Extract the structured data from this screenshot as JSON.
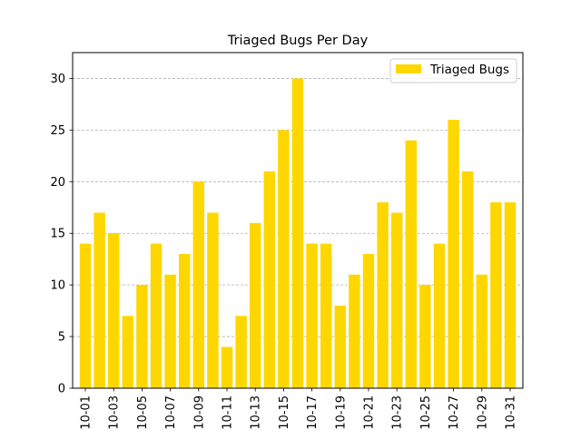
{
  "chart_data": {
    "type": "bar",
    "title": "Triaged Bugs Per Day",
    "xlabel": "",
    "ylabel": "",
    "categories": [
      "10-01",
      "10-02",
      "10-03",
      "10-04",
      "10-05",
      "10-06",
      "10-07",
      "10-08",
      "10-09",
      "10-10",
      "10-11",
      "10-12",
      "10-13",
      "10-14",
      "10-15",
      "10-16",
      "10-17",
      "10-18",
      "10-19",
      "10-20",
      "10-21",
      "10-22",
      "10-23",
      "10-24",
      "10-25",
      "10-26",
      "10-27",
      "10-28",
      "10-29",
      "10-30",
      "10-31"
    ],
    "tick_labels": [
      "10-01",
      "10-03",
      "10-05",
      "10-07",
      "10-09",
      "10-11",
      "10-13",
      "10-15",
      "10-17",
      "10-19",
      "10-21",
      "10-23",
      "10-25",
      "10-27",
      "10-29",
      "10-31"
    ],
    "series": [
      {
        "name": "Triaged Bugs",
        "color": "#ffd700",
        "values": [
          14,
          17,
          15,
          7,
          10,
          14,
          11,
          13,
          20,
          17,
          4,
          7,
          16,
          21,
          25,
          30,
          14,
          14,
          8,
          11,
          13,
          18,
          17,
          24,
          10,
          14,
          26,
          21,
          11,
          18,
          18
        ]
      }
    ],
    "ylim": [
      0,
      32.5
    ],
    "yticks": [
      0,
      5,
      10,
      15,
      20,
      25,
      30
    ],
    "grid": "y-dashed",
    "legend_position": "top-right"
  }
}
